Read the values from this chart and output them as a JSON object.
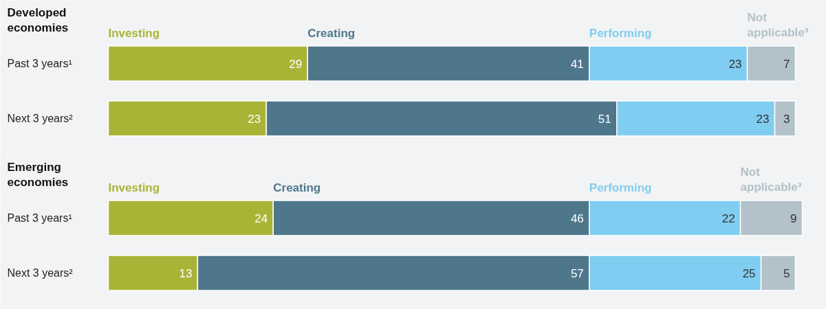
{
  "chart_data": [
    {
      "type": "bar",
      "orientation": "horizontal",
      "stacked": true,
      "title": "Developed economies",
      "categories": [
        "Past 3 years¹",
        "Next 3 years²"
      ],
      "series": [
        {
          "name": "Investing",
          "color": "#a9b437",
          "values": [
            29,
            23
          ]
        },
        {
          "name": "Creating",
          "color": "#4e778c",
          "values": [
            41,
            51
          ]
        },
        {
          "name": "Performing",
          "color": "#7fcdf0",
          "values": [
            23,
            23
          ]
        },
        {
          "name": "Not applicable³",
          "color": "#b3c1c9",
          "values": [
            7,
            3
          ]
        }
      ],
      "data_labels": true,
      "legend": false,
      "grid": false,
      "tick_labels": false
    },
    {
      "type": "bar",
      "orientation": "horizontal",
      "stacked": true,
      "title": "Emerging economies",
      "categories": [
        "Past 3 years¹",
        "Next 3 years²"
      ],
      "series": [
        {
          "name": "Investing",
          "color": "#a9b437",
          "values": [
            24,
            13
          ]
        },
        {
          "name": "Creating",
          "color": "#4e778c",
          "values": [
            46,
            57
          ]
        },
        {
          "name": "Performing",
          "color": "#7fcdf0",
          "values": [
            22,
            25
          ]
        },
        {
          "name": "Not applicable³",
          "color": "#b3c1c9",
          "values": [
            9,
            5
          ]
        }
      ],
      "data_labels": true,
      "legend": false,
      "grid": false,
      "tick_labels": false
    }
  ]
}
